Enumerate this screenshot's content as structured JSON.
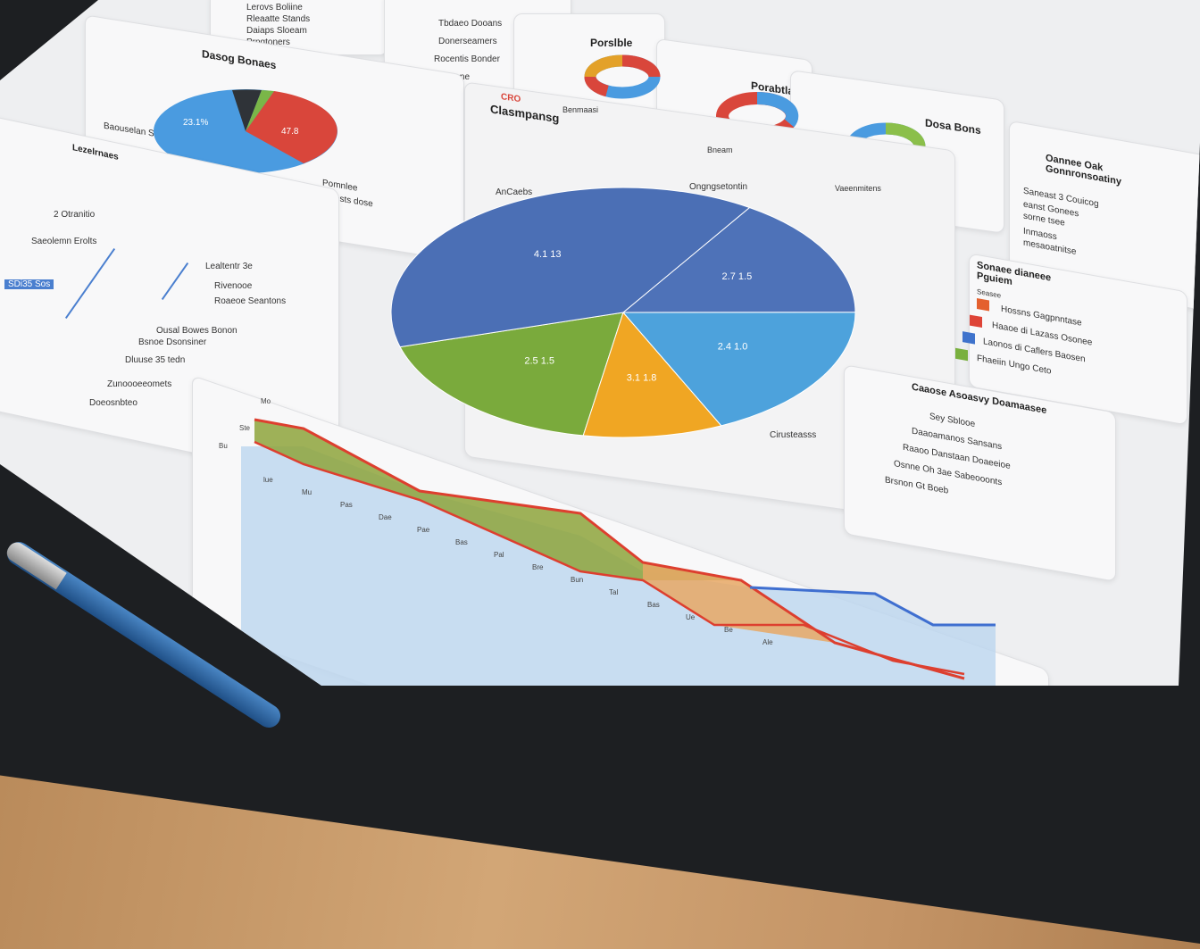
{
  "top_left_list": {
    "items": [
      "Lerovs Boliine",
      "Rleaatte Stands",
      "Daiaps Sloeam",
      "Prngtoners"
    ]
  },
  "top_mid_list": {
    "items": [
      "Tbdaeo Dooans",
      "Donerseamers",
      "Rocentis Bonder",
      "Dooaenst Dnane"
    ]
  },
  "pie_small": {
    "title": "Dasog Bonaes",
    "caption": "Baouselan Seaete",
    "label": "23.1%",
    "label2": "47.8",
    "legend": [
      "Pomnlee",
      "Reesnosts dose"
    ],
    "colors": [
      "#4a9be0",
      "#d9463b",
      "#2f3338",
      "#7ab648"
    ]
  },
  "donuts": [
    {
      "title": "Porslble",
      "legend": "Benmaasi"
    },
    {
      "title": "Porabtla",
      "legend": "Bneam"
    },
    {
      "title": "Dosa Bons",
      "legend": "Vaeenmitens"
    }
  ],
  "main_pie": {
    "badge": "CRO",
    "title": "Clasmpansg",
    "label_left": "AnCaebs",
    "label_top": "Ongngsetontin",
    "label_bottom": "Cirusteasss",
    "slices": [
      {
        "label": "4.1 13",
        "percent": 38.6,
        "color": "#4b6fb5"
      },
      {
        "label": "2.7 1.5",
        "percent": 15.8,
        "color": "#4e72b8"
      },
      {
        "label": "2.4 1.0",
        "percent": 18.1,
        "color": "#4da2dc"
      },
      {
        "label": "3.1 1.8",
        "percent": 9.7,
        "color": "#f0a623"
      },
      {
        "label": "2.5 1.5",
        "percent": 17.8,
        "color": "#7aaa3c"
      }
    ]
  },
  "left_list": {
    "title": "Lezelrnaes",
    "items": [
      "2 Otranitio",
      "Saeolemn Erolts",
      "Lealtentr 3e",
      "SDi35 Sos",
      "Rivenooe",
      "Roaeoe Seantons",
      "Ousal Bowes Bonon",
      "Bsnoe Dsonsiner",
      "Dluuse 35 tedn",
      "Zunoooeeomets",
      "Doeosnbteo"
    ]
  },
  "right_panels": [
    {
      "title": "Oannee Oak Gonnronsoatiny",
      "items": [
        "Saneast 3 Couicog",
        "eanst Gonees",
        "sorne tsee",
        "Inmaoss",
        "mesaoatnitse"
      ]
    },
    {
      "title": "Sonaee dianeee Pguiem",
      "subtitle": "Seasee",
      "items": [
        "Hossns Gagpnntase",
        "Haaoe di Lazass Osonee",
        "Laonos di Caflers Baosen",
        "Fhaeiin Ungo Ceto"
      ],
      "colors": [
        "#e4602e",
        "#de4437",
        "#3f73cc",
        "#79b03e"
      ]
    },
    {
      "title": "Caaose Asoasvy Doamaasee",
      "items": [
        "Sey Sblooe",
        "Daaoamanos Sansans",
        "Raaoo Danstaan Doaeeioe",
        "Osnne Oh 3ae Sabeooonts",
        "Brsnon Gt Boeb"
      ]
    }
  ],
  "line_chart": {
    "ticks": [
      "lue",
      "Mu",
      "Pas",
      "Dae",
      "Pae",
      "Bas",
      "Pal",
      "Bre",
      "Bun",
      "Tal",
      "Bas",
      "Ue",
      "Be",
      "Ale"
    ],
    "y_ticks": [
      "Mo",
      "Ste",
      "Bu"
    ]
  }
}
